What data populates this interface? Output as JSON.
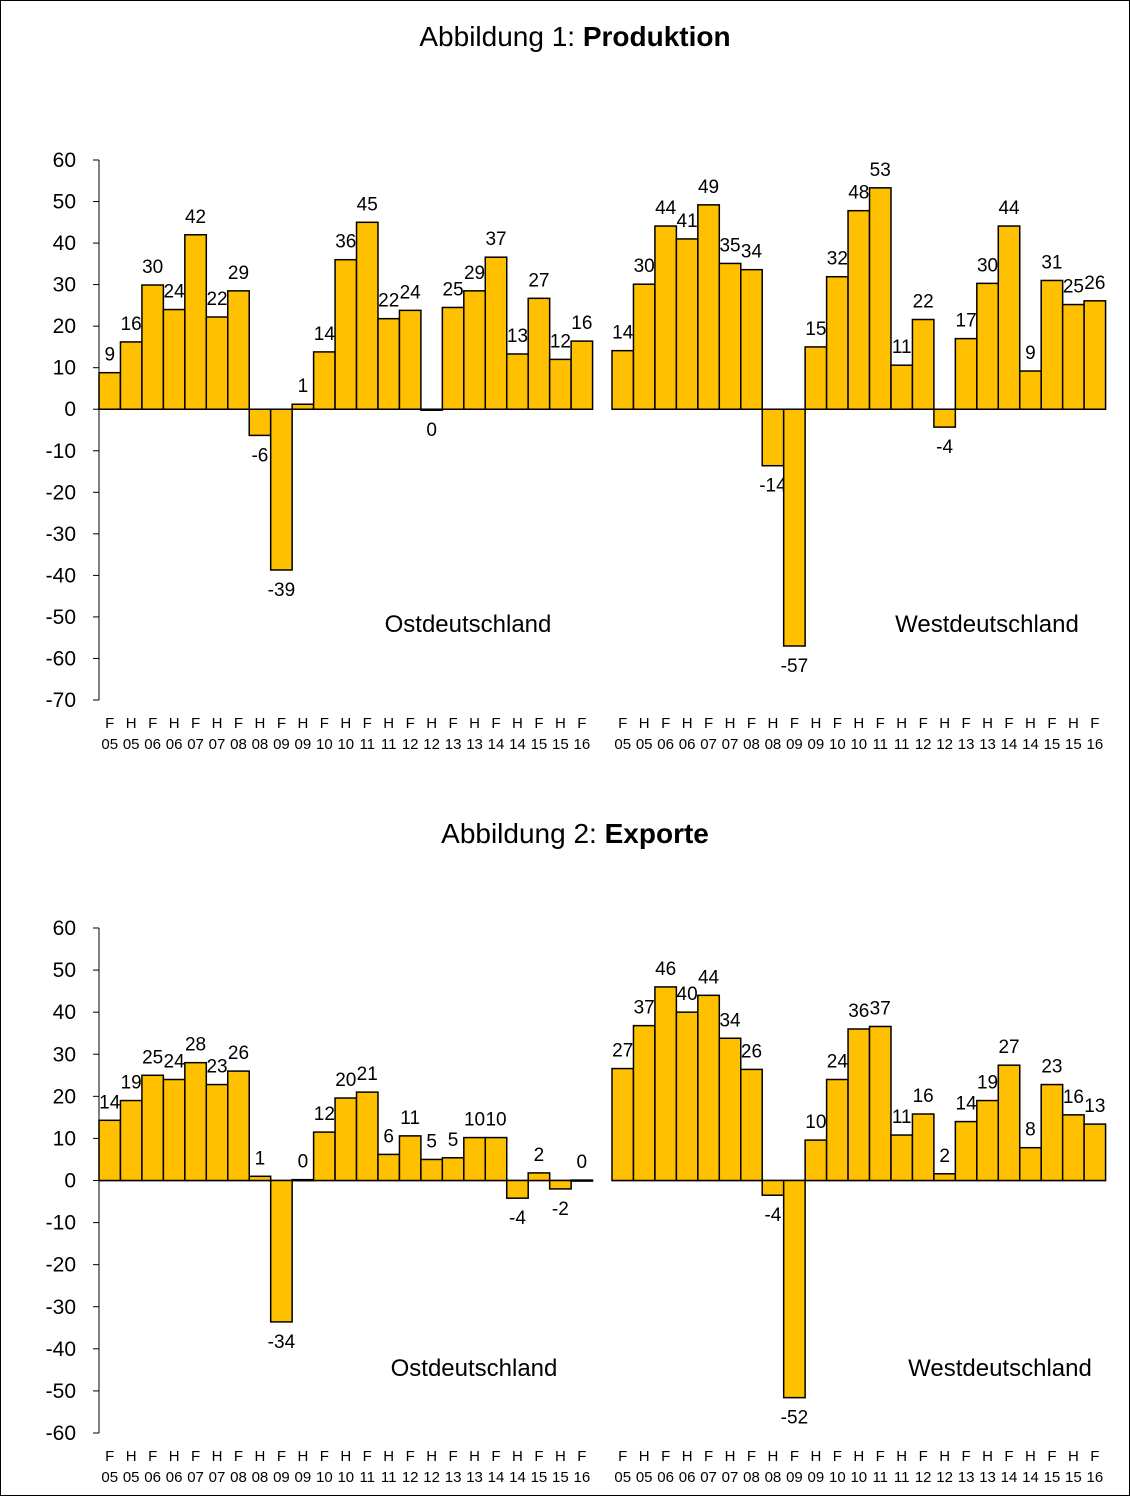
{
  "colors": {
    "bar": "#FFC000",
    "bar_stroke": "#000000",
    "axis": "#000000",
    "background": "#FFFFFF"
  },
  "x_labels": {
    "halves": [
      "F",
      "H",
      "F",
      "H",
      "F",
      "H",
      "F",
      "H",
      "F",
      "H",
      "F",
      "H",
      "F",
      "H",
      "F",
      "H",
      "F",
      "H",
      "F",
      "H",
      "F",
      "H",
      "F"
    ],
    "years": [
      "05",
      "05",
      "06",
      "06",
      "07",
      "07",
      "08",
      "08",
      "09",
      "09",
      "10",
      "10",
      "11",
      "11",
      "12",
      "12",
      "13",
      "13",
      "14",
      "14",
      "15",
      "15",
      "16"
    ]
  },
  "chart_data": [
    {
      "type": "bar",
      "title_prefix": "Abbildung 1: ",
      "title_bold": "Produktion",
      "ylim": [
        -70,
        60
      ],
      "yticks": [
        60,
        50,
        40,
        30,
        20,
        10,
        0,
        -10,
        -20,
        -30,
        -40,
        -50,
        -60,
        -70
      ],
      "grid": false,
      "series": [
        {
          "region_label": "Ostdeutschland",
          "values": [
            8.8,
            16.2,
            29.9,
            24.0,
            42.0,
            22.2,
            28.5,
            -6.3,
            -38.7,
            1.2,
            13.8,
            36.0,
            45.0,
            21.8,
            23.8,
            -0.2,
            24.5,
            28.5,
            36.6,
            13.3,
            26.7,
            12.0,
            16.4
          ],
          "labels": [
            "9",
            "16",
            "30",
            "24",
            "42",
            "22",
            "29",
            "-6",
            "-39",
            "1",
            "14",
            "36",
            "45",
            "22",
            "24",
            "0",
            "25",
            "29",
            "37",
            "13",
            "27",
            "12",
            "16"
          ]
        },
        {
          "region_label": "Westdeutschland",
          "values": [
            14.1,
            30.1,
            44.1,
            41.0,
            49.2,
            35.1,
            33.6,
            -13.6,
            -57.0,
            15.0,
            31.9,
            47.8,
            53.3,
            10.6,
            21.6,
            -4.3,
            17.0,
            30.3,
            44.1,
            9.2,
            31.0,
            25.2,
            26.1
          ],
          "labels": [
            "14",
            "30",
            "44",
            "41",
            "49",
            "35",
            "34",
            "-14",
            "-57",
            "15",
            "32",
            "48",
            "53",
            "11",
            "22",
            "-4",
            "17",
            "30",
            "44",
            "9",
            "31",
            "25",
            "26"
          ]
        }
      ]
    },
    {
      "type": "bar",
      "title_prefix": "Abbildung 2: ",
      "title_bold": "Exporte",
      "ylim": [
        -60,
        60
      ],
      "yticks": [
        60,
        50,
        40,
        30,
        20,
        10,
        0,
        -10,
        -20,
        -30,
        -40,
        -50,
        -60
      ],
      "grid": false,
      "series": [
        {
          "region_label": "Ostdeutschland",
          "values": [
            14.3,
            19.0,
            25.0,
            24.0,
            28.0,
            22.8,
            26.0,
            1.0,
            -33.6,
            0.2,
            11.5,
            19.6,
            21.0,
            6.2,
            10.6,
            5.0,
            5.4,
            10.2,
            10.2,
            -4.2,
            1.8,
            -2.0,
            0.1
          ],
          "labels": [
            "14",
            "19",
            "25",
            "24",
            "28",
            "23",
            "26",
            "1",
            "-34",
            "0",
            "12",
            "20",
            "21",
            "6",
            "11",
            "5",
            "5",
            "10",
            "10",
            "-4",
            "2",
            "-2",
            "0"
          ]
        },
        {
          "region_label": "Westdeutschland",
          "values": [
            26.6,
            36.8,
            46.0,
            40.0,
            44.0,
            33.8,
            26.4,
            -3.5,
            -51.6,
            9.6,
            24.0,
            36.0,
            36.6,
            10.8,
            15.8,
            1.6,
            14.0,
            19.0,
            27.4,
            7.8,
            22.8,
            15.6,
            13.4
          ],
          "labels": [
            "27",
            "37",
            "46",
            "40",
            "44",
            "34",
            "26",
            "-4",
            "-52",
            "10",
            "24",
            "36",
            "37",
            "11",
            "16",
            "2",
            "14",
            "19",
            "27",
            "8",
            "23",
            "16",
            "13"
          ]
        }
      ]
    }
  ]
}
